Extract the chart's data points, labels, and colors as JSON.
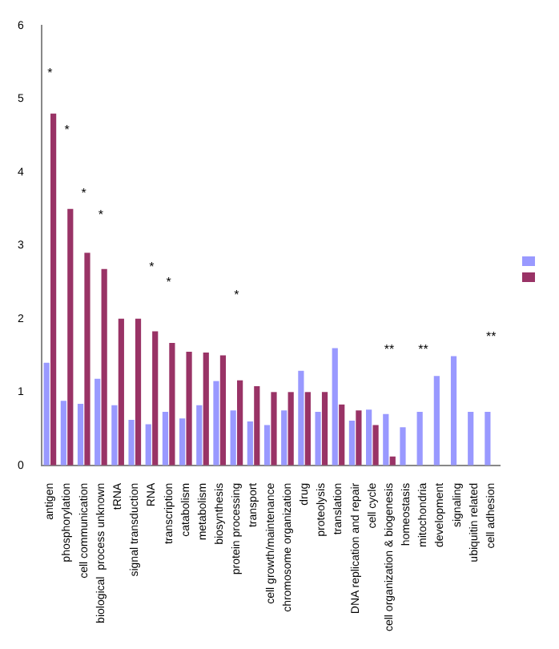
{
  "chart_data": {
    "type": "bar",
    "categories": [
      "antigen",
      "phosphorylation",
      "cell communication",
      "biological  process unknown",
      "tRNA",
      "signal transduction",
      "RNA",
      "transcription",
      "catabolism",
      "metabolism",
      "biosynthesis",
      "protein processing",
      "transport",
      "cell growth/maintenance",
      "chromosome organization",
      "drug",
      "proteolysis",
      "translation",
      "DNA replication and repair",
      "cell cycle",
      "cell organization & biogenesis",
      "homeostasis",
      "mitochondria",
      "development",
      "signaling",
      "ubiquitin related",
      "cell adhesion"
    ],
    "series": [
      {
        "color": "#9999ff",
        "values": [
          1.4,
          0.88,
          0.84,
          1.18,
          0.82,
          0.62,
          0.56,
          0.73,
          0.64,
          0.82,
          1.15,
          0.75,
          0.6,
          0.55,
          0.75,
          1.29,
          0.73,
          1.6,
          0.61,
          0.76,
          0.7,
          0.52,
          0.73,
          1.22,
          1.49,
          0.73,
          0.73
        ]
      },
      {
        "color": "#993366",
        "values": [
          4.8,
          3.5,
          2.9,
          2.68,
          2.0,
          2.0,
          1.83,
          1.67,
          1.55,
          1.54,
          1.5,
          1.16,
          1.08,
          1.0,
          1.0,
          1.0,
          1.0,
          0.83,
          0.75,
          0.55,
          0.12,
          null,
          null,
          null,
          null,
          null,
          null
        ]
      }
    ],
    "ylim": [
      0,
      6
    ],
    "yticks": [
      0,
      1,
      2,
      3,
      4,
      5,
      6
    ],
    "grid": false,
    "annotations": [
      "*",
      "*",
      "*",
      "*",
      "*",
      "*",
      "*",
      "**",
      "**",
      "**"
    ]
  }
}
